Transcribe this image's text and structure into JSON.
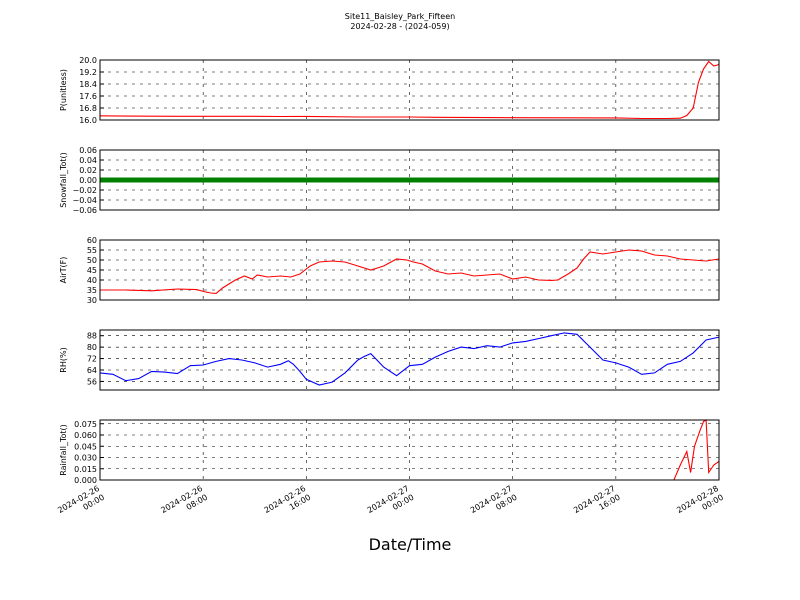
{
  "chart_data": {
    "type": "line",
    "title": "Site11_Baisley_Park_Fifteen",
    "subtitle": "2024-02-28 - (2024-059)",
    "xlabel": "Date/Time",
    "x_range": [
      "2024-02-26 00:00",
      "2024-02-28 00:00"
    ],
    "x_ticks": [
      {
        "line1": "2024-02-26",
        "line2": "00:00",
        "hours": 0
      },
      {
        "line1": "2024-02-26",
        "line2": "08:00",
        "hours": 8
      },
      {
        "line1": "2024-02-26",
        "line2": "16:00",
        "hours": 16
      },
      {
        "line1": "2024-02-27",
        "line2": "00:00",
        "hours": 24
      },
      {
        "line1": "2024-02-27",
        "line2": "08:00",
        "hours": 32
      },
      {
        "line1": "2024-02-27",
        "line2": "16:00",
        "hours": 40
      },
      {
        "line1": "2024-02-28",
        "line2": "00:00",
        "hours": 48
      }
    ],
    "grid": true,
    "panels": [
      {
        "ylabel": "P(unitless)",
        "ylim": [
          16.0,
          20.0
        ],
        "ticks": [
          "16.0",
          "16.8",
          "17.6",
          "18.4",
          "19.2",
          "20.0"
        ],
        "color": "#ff0000",
        "style": "line",
        "x_hours": [
          0,
          2,
          6,
          12,
          14,
          16,
          20,
          24,
          26,
          30,
          36,
          40,
          42,
          44,
          45,
          45.5,
          46,
          46.4,
          46.8,
          47.2,
          47.6,
          48
        ],
        "values": [
          16.28,
          16.26,
          16.25,
          16.25,
          16.23,
          16.24,
          16.2,
          16.2,
          16.18,
          16.16,
          16.15,
          16.14,
          16.1,
          16.1,
          16.12,
          16.3,
          16.8,
          18.5,
          19.4,
          19.9,
          19.6,
          19.7
        ]
      },
      {
        "ylabel": "Snowfall_Tot()",
        "ylim": [
          -0.06,
          0.06
        ],
        "ticks": [
          "−0.06",
          "−0.04",
          "−0.02",
          "0.00",
          "0.02",
          "0.04",
          "0.06"
        ],
        "color": "#008000",
        "style": "marker",
        "x_hours": [
          0,
          48
        ],
        "values": [
          0.0,
          0.0
        ]
      },
      {
        "ylabel": "AirT(F)",
        "ylim": [
          30,
          60
        ],
        "ticks": [
          "30",
          "35",
          "40",
          "45",
          "50",
          "55",
          "60"
        ],
        "color": "#ff0000",
        "style": "line",
        "x_hours": [
          0,
          2,
          4,
          6,
          7.5,
          8.2,
          8.6,
          9,
          9.5,
          10.5,
          11.2,
          11.8,
          12.2,
          13,
          14,
          14.8,
          15.5,
          16.3,
          17,
          18,
          19,
          20,
          21,
          22,
          23,
          23.8,
          24.3,
          25,
          26,
          27,
          28,
          29,
          30,
          31,
          32,
          33,
          34,
          35,
          35.5,
          36.3,
          37,
          37.5,
          38,
          39,
          40,
          41,
          42,
          43,
          44,
          45,
          46,
          47,
          48
        ],
        "values": [
          35,
          35,
          34.6,
          35.5,
          35.2,
          34,
          33.5,
          33.3,
          36,
          40,
          42,
          40.5,
          42.5,
          41.5,
          42,
          41.5,
          43,
          47,
          49,
          49.5,
          49,
          47,
          45,
          47,
          50.5,
          50,
          49,
          48,
          44.5,
          43,
          43.5,
          42,
          42.5,
          43,
          40.5,
          41.5,
          40,
          39.8,
          40,
          43,
          46,
          50.5,
          54,
          53,
          54,
          55,
          54.5,
          52.5,
          52,
          50.5,
          50,
          49.5,
          50.5
        ]
      },
      {
        "ylabel": "RH(%)",
        "ylim": [
          50,
          92
        ],
        "ticks": [
          "56",
          "64",
          "72",
          "80",
          "88"
        ],
        "color": "#0000ff",
        "style": "line",
        "x_hours": [
          0,
          1,
          2,
          3,
          4,
          5,
          6,
          7,
          8,
          9,
          10,
          11,
          12,
          13,
          14,
          14.6,
          15,
          15.5,
          16,
          17,
          18,
          19,
          20,
          20.5,
          21,
          22,
          23,
          24,
          25,
          26,
          27,
          28,
          29,
          30,
          31,
          32,
          33,
          34,
          35,
          36,
          37,
          38,
          39,
          40,
          41,
          42,
          43,
          44,
          45,
          46,
          47,
          48
        ],
        "values": [
          62,
          61,
          56.5,
          58,
          63,
          62.5,
          61.5,
          67,
          67.5,
          70,
          72,
          71,
          69,
          66,
          68,
          70.5,
          68,
          63,
          57.5,
          53.5,
          55.5,
          62,
          71,
          73.5,
          75.5,
          66,
          60,
          67,
          68,
          73,
          77,
          80,
          79,
          81,
          80,
          83,
          84,
          86,
          88,
          90,
          89,
          80,
          71,
          69,
          66,
          61,
          62,
          68,
          70,
          76,
          85,
          87
        ]
      },
      {
        "ylabel": "Rainfall_Tot()",
        "ylim": [
          0.0,
          0.08
        ],
        "ticks": [
          "0.000",
          "0.015",
          "0.030",
          "0.045",
          "0.060",
          "0.075"
        ],
        "color": "#ff0000",
        "style": "line",
        "x_hours": [
          0,
          44.5,
          45,
          45.5,
          45.8,
          46.1,
          46.5,
          46.8,
          47,
          47.2,
          47.6,
          48
        ],
        "values": [
          0,
          0,
          0.02,
          0.038,
          0.01,
          0.045,
          0.065,
          0.078,
          0.08,
          0.01,
          0.02,
          0.025
        ]
      }
    ]
  }
}
